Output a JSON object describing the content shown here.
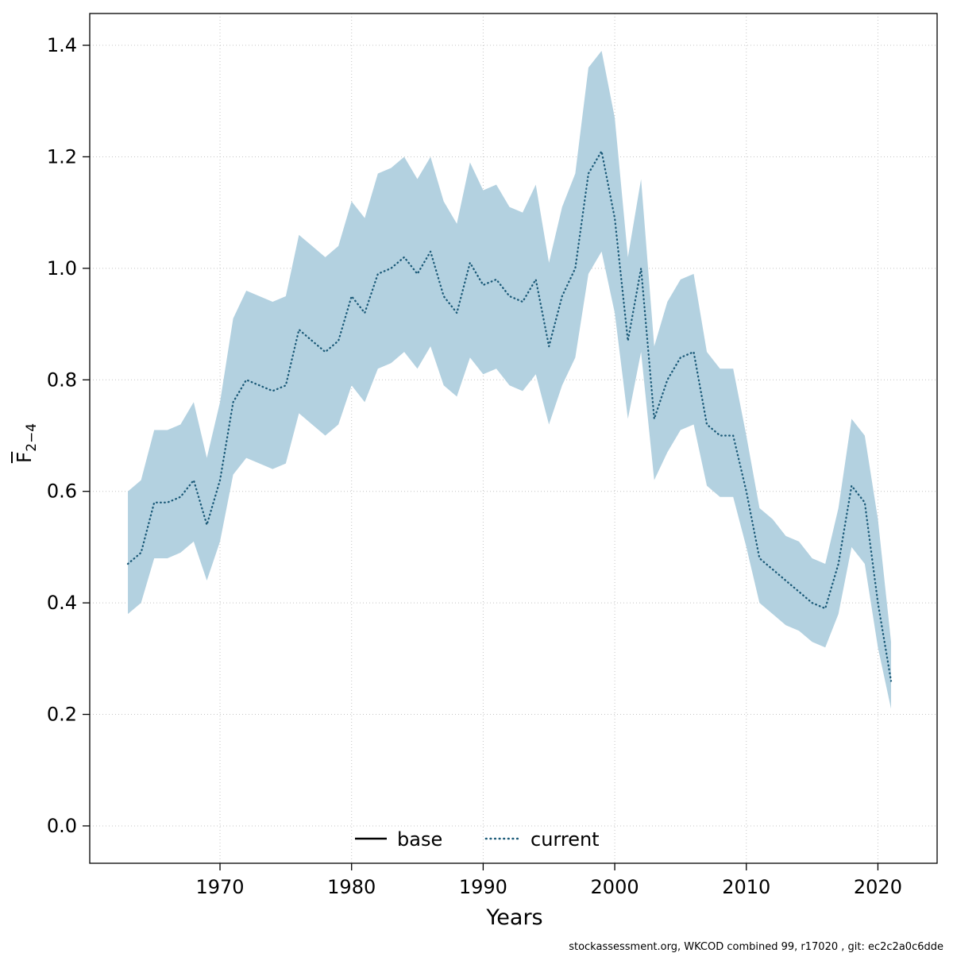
{
  "chart_data": {
    "type": "line",
    "title": "",
    "xlabel": "Years",
    "ylabel": {
      "letter": "F",
      "subscript": "2−4"
    },
    "xlim": [
      1960.1,
      2024.5
    ],
    "ylim": [
      -0.067,
      1.457
    ],
    "xticks": [
      1970,
      1980,
      1990,
      2000,
      2010,
      2020
    ],
    "yticks": [
      0.0,
      0.2,
      0.4,
      0.6,
      0.8,
      1.0,
      1.2,
      1.4
    ],
    "grid": true,
    "legend_position": "bottom-center-inside",
    "band_color": "#b3d1e0",
    "years": [
      1963,
      1964,
      1965,
      1966,
      1967,
      1968,
      1969,
      1970,
      1971,
      1972,
      1973,
      1974,
      1975,
      1976,
      1977,
      1978,
      1979,
      1980,
      1981,
      1982,
      1983,
      1984,
      1985,
      1986,
      1987,
      1988,
      1989,
      1990,
      1991,
      1992,
      1993,
      1994,
      1995,
      1996,
      1997,
      1998,
      1999,
      2000,
      2001,
      2002,
      2003,
      2004,
      2005,
      2006,
      2007,
      2008,
      2009,
      2010,
      2011,
      2012,
      2013,
      2014,
      2015,
      2016,
      2017,
      2018,
      2019,
      2020,
      2021
    ],
    "series": [
      {
        "name": "current",
        "style": "dotted",
        "color": "#1b5a78",
        "values": [
          0.47,
          0.49,
          0.58,
          0.58,
          0.59,
          0.62,
          0.54,
          0.62,
          0.76,
          0.8,
          0.79,
          0.78,
          0.79,
          0.89,
          0.87,
          0.85,
          0.87,
          0.95,
          0.92,
          0.99,
          1.0,
          1.02,
          0.99,
          1.03,
          0.95,
          0.92,
          1.01,
          0.97,
          0.98,
          0.95,
          0.94,
          0.98,
          0.86,
          0.95,
          1.0,
          1.17,
          1.21,
          1.09,
          0.87,
          1.0,
          0.73,
          0.8,
          0.84,
          0.85,
          0.72,
          0.7,
          0.7,
          0.6,
          0.48,
          0.46,
          0.44,
          0.42,
          0.4,
          0.39,
          0.47,
          0.61,
          0.58,
          0.4,
          0.26
        ],
        "lower": [
          0.38,
          0.4,
          0.48,
          0.48,
          0.49,
          0.51,
          0.44,
          0.51,
          0.63,
          0.66,
          0.65,
          0.64,
          0.65,
          0.74,
          0.72,
          0.7,
          0.72,
          0.79,
          0.76,
          0.82,
          0.83,
          0.85,
          0.82,
          0.86,
          0.79,
          0.77,
          0.84,
          0.81,
          0.82,
          0.79,
          0.78,
          0.81,
          0.72,
          0.79,
          0.84,
          0.99,
          1.03,
          0.92,
          0.73,
          0.85,
          0.62,
          0.67,
          0.71,
          0.72,
          0.61,
          0.59,
          0.59,
          0.5,
          0.4,
          0.38,
          0.36,
          0.35,
          0.33,
          0.32,
          0.38,
          0.5,
          0.47,
          0.32,
          0.21
        ],
        "upper": [
          0.6,
          0.62,
          0.71,
          0.71,
          0.72,
          0.76,
          0.66,
          0.76,
          0.91,
          0.96,
          0.95,
          0.94,
          0.95,
          1.06,
          1.04,
          1.02,
          1.04,
          1.12,
          1.09,
          1.17,
          1.18,
          1.2,
          1.16,
          1.2,
          1.12,
          1.08,
          1.19,
          1.14,
          1.15,
          1.11,
          1.1,
          1.15,
          1.01,
          1.11,
          1.17,
          1.36,
          1.39,
          1.27,
          1.02,
          1.16,
          0.86,
          0.94,
          0.98,
          0.99,
          0.85,
          0.82,
          0.82,
          0.7,
          0.57,
          0.55,
          0.52,
          0.51,
          0.48,
          0.47,
          0.57,
          0.73,
          0.7,
          0.55,
          0.33
        ]
      }
    ],
    "legend": [
      {
        "label": "base",
        "style": "solid",
        "color": "#000000"
      },
      {
        "label": "current",
        "style": "dotted",
        "color": "#1b5a78"
      }
    ],
    "footer": "stockassessment.org, WKCOD  combined  99, r17020 , git: ec2c2a0c6dde"
  }
}
